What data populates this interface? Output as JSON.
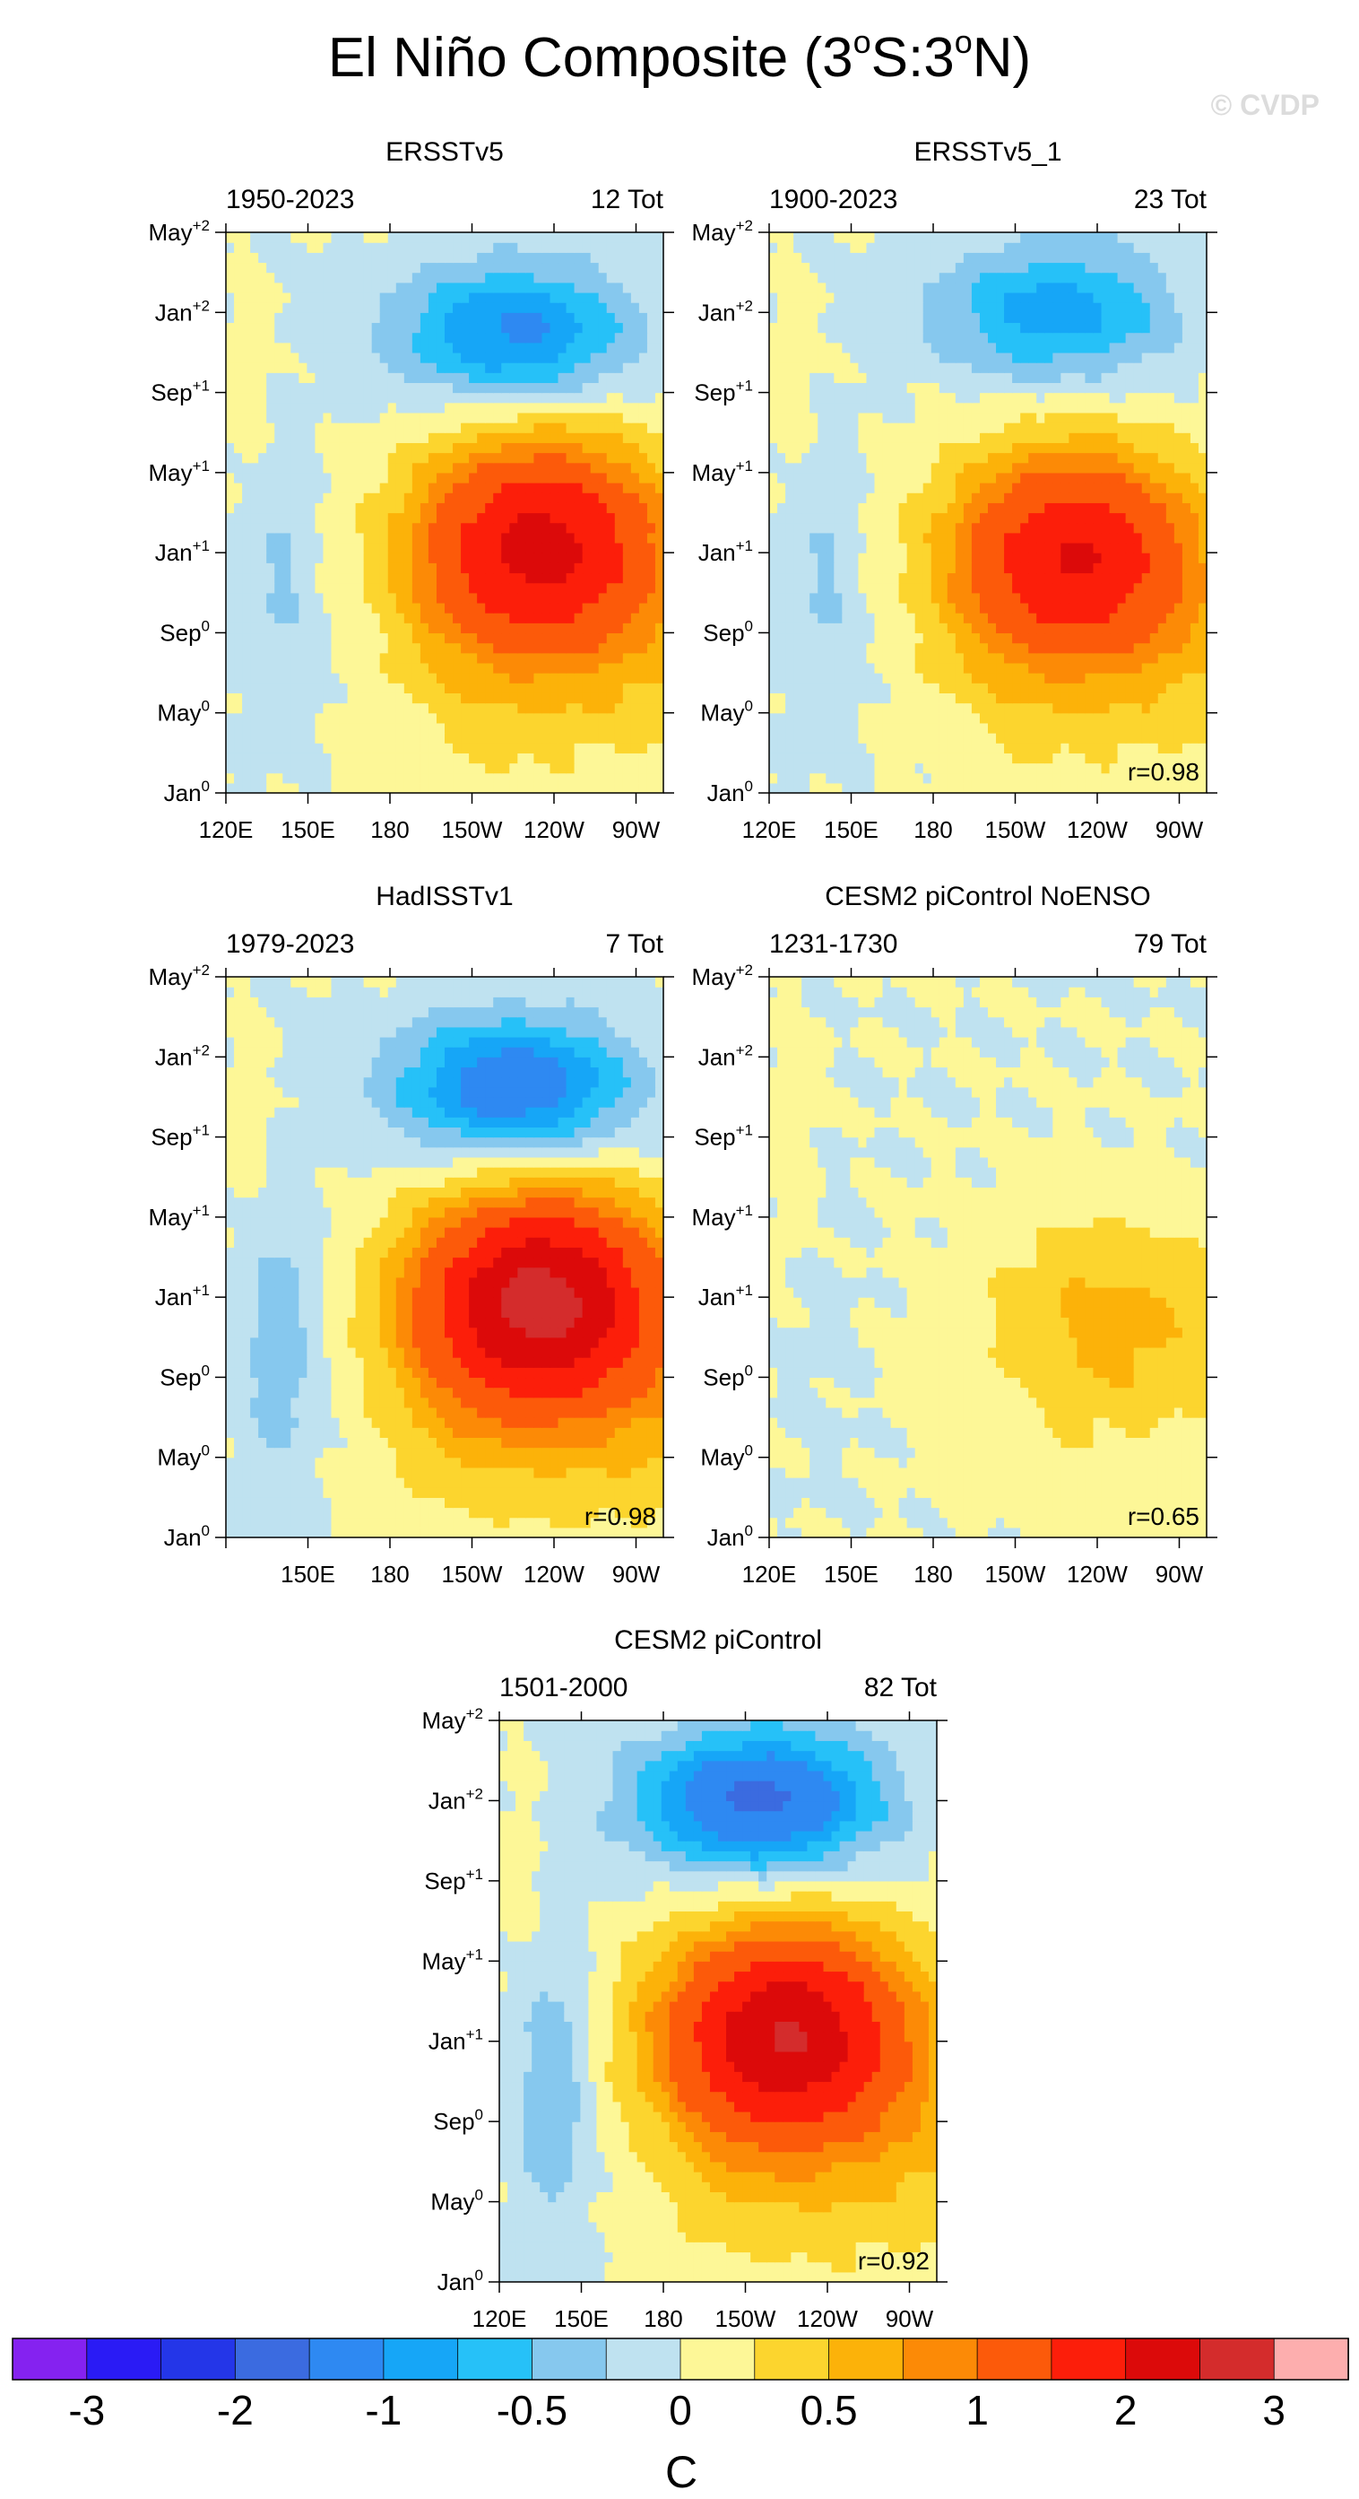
{
  "page": {
    "title": "El Niño Composite (3°S:3°N)",
    "title_main": "El Niño Composite (3",
    "title_sup1": "o",
    "title_mid": "S:3",
    "title_sup2": "o",
    "title_end": "N)",
    "watermark": "© CVDP"
  },
  "colorbar": {
    "unit": "C",
    "colors": [
      "#8522f0",
      "#2a1bf5",
      "#2436e8",
      "#3b6be0",
      "#2e89f2",
      "#16a6f7",
      "#26c1f8",
      "#86c8ee",
      "#bfe2f0",
      "#fdf797",
      "#fcd52e",
      "#fcb209",
      "#fc8a06",
      "#fc5a0a",
      "#fc1e0a",
      "#dc0a0a",
      "#d42c2c",
      "#fdaeae"
    ],
    "labels": [
      "-3",
      "-2",
      "-1",
      "-0.5",
      "0",
      "0.5",
      "1",
      "2",
      "3"
    ],
    "label_edges": [
      1,
      3,
      5,
      7,
      9,
      11,
      13,
      15,
      17
    ]
  },
  "chart_data": [
    {
      "type": "heatmap",
      "title": "ERSSTv5",
      "left_label": "1950-2023",
      "right_label": "12 Tot",
      "corr_label": "",
      "x_ticks": [
        "120E",
        "150E",
        "180",
        "150W",
        "120W",
        "90W"
      ],
      "x_tick_lon": [
        120,
        150,
        180,
        210,
        240,
        270
      ],
      "x_range": [
        120,
        280
      ],
      "y_ticks": [
        "Jan",
        "May",
        "Sep",
        "Jan",
        "May",
        "Sep",
        "Jan",
        "May"
      ],
      "y_tick_sup": [
        "0",
        "0",
        "0",
        "+1",
        "+1",
        "+1",
        "+2",
        "+2"
      ],
      "y_range_months": [
        0,
        28
      ],
      "pattern": {
        "warm_peak": 2.1,
        "warm_center_lon": 235,
        "warm_center_month": 12.5,
        "cool_peak": -1.1,
        "cool_center_lon": 225,
        "cool_center_month": 23,
        "west_cool": -0.3
      }
    },
    {
      "type": "heatmap",
      "title": "ERSSTv5_1",
      "left_label": "1900-2023",
      "right_label": "23 Tot",
      "corr_label": "r=0.98",
      "x_ticks": [
        "120E",
        "150E",
        "180",
        "150W",
        "120W",
        "90W"
      ],
      "x_tick_lon": [
        120,
        150,
        180,
        210,
        240,
        270
      ],
      "x_range": [
        120,
        280
      ],
      "y_ticks": [
        "Jan",
        "May",
        "Sep",
        "Jan",
        "May",
        "Sep",
        "Jan",
        "May"
      ],
      "y_tick_sup": [
        "0",
        "0",
        "0",
        "+1",
        "+1",
        "+1",
        "+2",
        "+2"
      ],
      "y_range_months": [
        0,
        28
      ],
      "pattern": {
        "warm_peak": 1.9,
        "warm_center_lon": 232,
        "warm_center_month": 12,
        "cool_peak": -0.9,
        "cool_center_lon": 225,
        "cool_center_month": 24,
        "west_cool": -0.3
      }
    },
    {
      "type": "heatmap",
      "title": "HadISSTv1",
      "left_label": "1979-2023",
      "right_label": "7 Tot",
      "corr_label": "r=0.98",
      "x_ticks": [
        "",
        "150E",
        "180",
        "150W",
        "120W",
        "90W"
      ],
      "x_tick_lon": [
        120,
        150,
        180,
        210,
        240,
        270
      ],
      "x_range": [
        120,
        280
      ],
      "y_ticks": [
        "Jan",
        "May",
        "Sep",
        "Jan",
        "May",
        "Sep",
        "Jan",
        "May"
      ],
      "y_tick_sup": [
        "0",
        "0",
        "0",
        "+1",
        "+1",
        "+1",
        "+2",
        "+2"
      ],
      "y_range_months": [
        0,
        28
      ],
      "pattern": {
        "warm_peak": 2.6,
        "warm_center_lon": 235,
        "warm_center_month": 12,
        "cool_peak": -1.3,
        "cool_center_lon": 225,
        "cool_center_month": 22.5,
        "west_cool": -0.45
      }
    },
    {
      "type": "heatmap",
      "title": "CESM2 piControl NoENSO",
      "left_label": "1231-1730",
      "right_label": "79 Tot",
      "corr_label": "r=0.65",
      "x_ticks": [
        "120E",
        "150E",
        "180",
        "150W",
        "120W",
        "90W"
      ],
      "x_tick_lon": [
        120,
        150,
        180,
        210,
        240,
        270
      ],
      "x_range": [
        120,
        280
      ],
      "y_ticks": [
        "Jan",
        "May",
        "Sep",
        "Jan",
        "May",
        "Sep",
        "Jan",
        "May"
      ],
      "y_tick_sup": [
        "0",
        "0",
        "0",
        "+1",
        "+1",
        "+1",
        "+2",
        "+2"
      ],
      "y_range_months": [
        0,
        28
      ],
      "pattern": {
        "warm_peak": 0.55,
        "warm_center_lon": 245,
        "warm_center_month": 11,
        "cool_peak": 0,
        "cool_center_lon": 225,
        "cool_center_month": 23,
        "west_cool": -0.05
      }
    },
    {
      "type": "heatmap",
      "title": "CESM2 piControl",
      "left_label": "1501-2000",
      "right_label": "82 Tot",
      "corr_label": "r=0.92",
      "x_ticks": [
        "120E",
        "150E",
        "180",
        "150W",
        "120W",
        "90W"
      ],
      "x_tick_lon": [
        120,
        150,
        180,
        210,
        240,
        270
      ],
      "x_range": [
        120,
        280
      ],
      "y_ticks": [
        "Jan",
        "May",
        "Sep",
        "Jan",
        "May",
        "Sep",
        "Jan",
        "May"
      ],
      "y_tick_sup": [
        "0",
        "0",
        "0",
        "+1",
        "+1",
        "+1",
        "+2",
        "+2"
      ],
      "y_range_months": [
        0,
        28
      ],
      "pattern": {
        "warm_peak": 2.4,
        "warm_center_lon": 225,
        "warm_center_month": 12.5,
        "cool_peak": -1.6,
        "cool_center_lon": 215,
        "cool_center_month": 24,
        "west_cool": -0.5
      }
    }
  ]
}
